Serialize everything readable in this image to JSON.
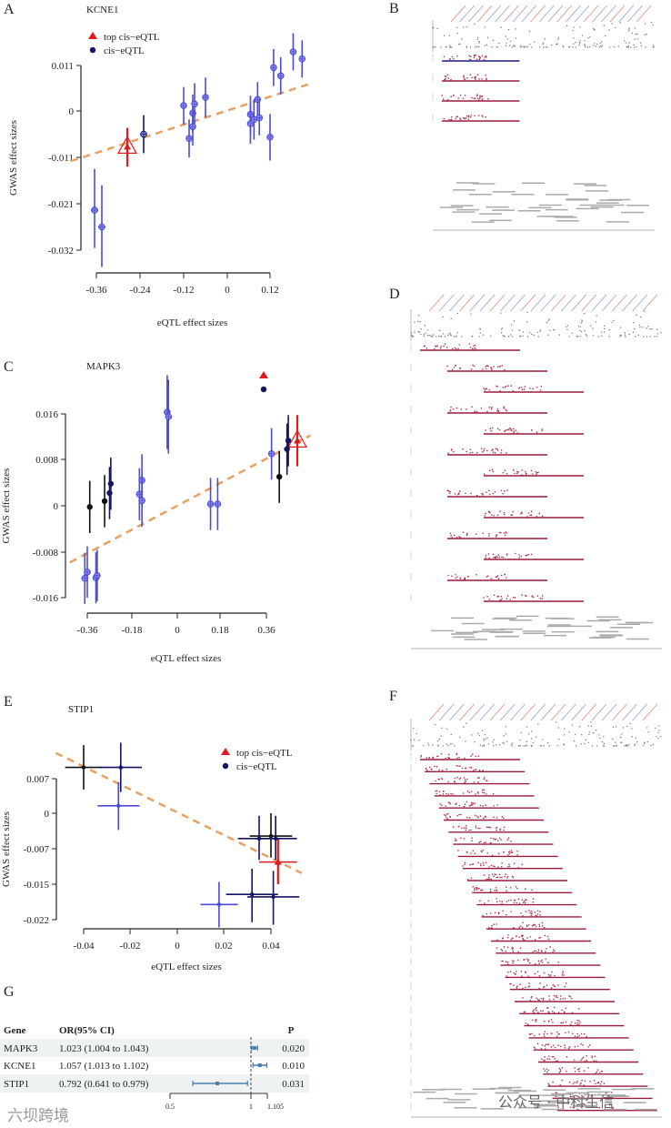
{
  "chart_data": [
    {
      "panel": "A",
      "type": "scatter",
      "title": "KCNE1",
      "xlabel": "eQTL effect sizes",
      "ylabel": "GWAS effect sizes",
      "xticks": [
        "-0.36",
        "-0.24",
        "-0.12",
        "0",
        "0.12"
      ],
      "xtick_values": [
        -0.36,
        -0.24,
        -0.12,
        0,
        0.12
      ],
      "yticks": [
        "0.011",
        "0",
        "-0.011",
        "-0.021",
        "-0.032"
      ],
      "ytick_values": [
        0.011,
        0,
        -0.011,
        -0.021,
        -0.032
      ],
      "legend": [
        "top cis−eQTL",
        "cis−eQTL"
      ],
      "legend_position": "top-left",
      "trend": [
        [
          -0.43,
          -0.0118
        ],
        [
          0.24,
          0.0068
        ]
      ],
      "points": [
        {
          "x": -0.275,
          "y": -0.0085,
          "yerr": 0.0045,
          "kind": "top"
        },
        {
          "x": -0.365,
          "y": -0.0225,
          "yerr": 0.009,
          "xerr": 0.01,
          "kind": "cis"
        },
        {
          "x": -0.345,
          "y": -0.0265,
          "yerr": 0.0095,
          "xerr": 0.01,
          "kind": "cis"
        },
        {
          "x": -0.23,
          "y": -0.0055,
          "yerr": 0.0045,
          "kind": "dark"
        },
        {
          "x": -0.12,
          "y": 0.0013,
          "yerr": 0.0045,
          "kind": "cis"
        },
        {
          "x": -0.105,
          "y": -0.0065,
          "yerr": 0.0045,
          "kind": "cis"
        },
        {
          "x": -0.095,
          "y": -0.0005,
          "yerr": 0.0045,
          "kind": "cis"
        },
        {
          "x": -0.09,
          "y": 0.0017,
          "yerr": 0.005,
          "kind": "cis"
        },
        {
          "x": -0.095,
          "y": -0.0037,
          "yerr": 0.0045,
          "kind": "cis"
        },
        {
          "x": -0.06,
          "y": 0.0033,
          "yerr": 0.0048,
          "kind": "cis"
        },
        {
          "x": 0.065,
          "y": -0.0008,
          "yerr": 0.0045,
          "kind": "cis"
        },
        {
          "x": 0.065,
          "y": -0.003,
          "yerr": 0.0048,
          "kind": "cis"
        },
        {
          "x": 0.075,
          "y": -0.002,
          "yerr": 0.0048,
          "kind": "cis"
        },
        {
          "x": 0.085,
          "y": 0.0028,
          "yerr": 0.0042,
          "kind": "cis"
        },
        {
          "x": 0.09,
          "y": -0.0016,
          "yerr": 0.0042,
          "kind": "cis"
        },
        {
          "x": 0.12,
          "y": -0.0062,
          "yerr": 0.0055,
          "kind": "cis"
        },
        {
          "x": 0.13,
          "y": 0.0105,
          "yerr": 0.0045,
          "kind": "cis"
        },
        {
          "x": 0.15,
          "y": 0.0085,
          "yerr": 0.0045,
          "kind": "cis"
        },
        {
          "x": 0.185,
          "y": 0.0143,
          "yerr": 0.0045,
          "kind": "cis"
        },
        {
          "x": 0.21,
          "y": 0.0126,
          "yerr": 0.0045,
          "kind": "cis"
        }
      ]
    },
    {
      "panel": "C",
      "type": "scatter",
      "title": "MAPK3",
      "xlabel": "eQTL effect sizes",
      "ylabel": "GWAS effect sizes",
      "xticks": [
        "-0.36",
        "-0.18",
        "0",
        "0.18",
        "0.36"
      ],
      "xtick_values": [
        -0.36,
        -0.18,
        0,
        0.18,
        0.36
      ],
      "yticks": [
        "0.016",
        "0.008",
        "0",
        "-0.008",
        "-0.016"
      ],
      "ytick_values": [
        0.016,
        0.008,
        0,
        -0.008,
        -0.016
      ],
      "legend": [],
      "legend_position": "top-right",
      "trend": [
        [
          -0.43,
          -0.0098
        ],
        [
          0.53,
          0.0122
        ]
      ],
      "points": [
        {
          "x": 0.48,
          "y": 0.0113,
          "yerr": 0.0045,
          "kind": "top"
        },
        {
          "x": -0.35,
          "y": -0.0002,
          "yerr": 0.0045,
          "kind": "black"
        },
        {
          "x": -0.29,
          "y": 0.0008,
          "yerr": 0.0045,
          "kind": "black"
        },
        {
          "x": -0.27,
          "y": 0.0022,
          "yerr": 0.0045,
          "kind": "dark"
        },
        {
          "x": -0.265,
          "y": 0.0038,
          "yerr": 0.0045,
          "kind": "dark"
        },
        {
          "x": -0.37,
          "y": -0.0126,
          "yerr": 0.0045,
          "kind": "cis"
        },
        {
          "x": -0.36,
          "y": -0.0115,
          "yerr": 0.0045,
          "kind": "cis"
        },
        {
          "x": -0.325,
          "y": -0.0125,
          "yerr": 0.0045,
          "kind": "cis"
        },
        {
          "x": -0.32,
          "y": -0.0121,
          "yerr": 0.0045,
          "kind": "cis"
        },
        {
          "x": -0.15,
          "y": 0.002,
          "yerr": 0.0045,
          "kind": "cis"
        },
        {
          "x": -0.14,
          "y": 0.0044,
          "yerr": 0.0045,
          "kind": "cis"
        },
        {
          "x": -0.14,
          "y": 0.0009,
          "yerr": 0.0045,
          "kind": "cis"
        },
        {
          "x": -0.04,
          "y": 0.0163,
          "yerr": 0.0065,
          "kind": "cis"
        },
        {
          "x": -0.035,
          "y": 0.0155,
          "yerr": 0.0065,
          "kind": "cis"
        },
        {
          "x": 0.14,
          "y": 0.0003,
          "yerr": 0.0045,
          "kind": "cis"
        },
        {
          "x": 0.17,
          "y": 0.0003,
          "yerr": 0.0045,
          "kind": "cis"
        },
        {
          "x": 0.38,
          "y": 0.009,
          "yerr": 0.0045,
          "kind": "cis"
        },
        {
          "x": 0.41,
          "y": 0.005,
          "yerr": 0.0045,
          "kind": "black"
        },
        {
          "x": 0.44,
          "y": 0.0098,
          "yerr": 0.0045,
          "kind": "dark"
        },
        {
          "x": 0.445,
          "y": 0.0113,
          "yerr": 0.0045,
          "kind": "dark"
        }
      ]
    },
    {
      "panel": "E",
      "type": "scatter",
      "title": "STIP1",
      "xlabel": "eQTL effect sizes",
      "ylabel": "GWAS effect sizes",
      "xticks": [
        "-0.04",
        "-0.02",
        "0",
        "0.02",
        "0.04"
      ],
      "xtick_values": [
        -0.04,
        -0.02,
        0,
        0.02,
        0.04
      ],
      "yticks": [
        "0.007",
        "0",
        "-0.007",
        "-0.015",
        "-0.022"
      ],
      "ytick_values": [
        0.007,
        0,
        -0.007,
        -0.015,
        -0.022
      ],
      "legend": [
        "top cis−eQTL",
        "cis−eQTL"
      ],
      "legend_position": "top-right",
      "trend": [
        [
          -0.052,
          0.0122
        ],
        [
          0.053,
          -0.0125
        ]
      ],
      "points": [
        {
          "x": 0.043,
          "y": -0.01,
          "yerr": 0.005,
          "xerr": 0.008,
          "kind": "top"
        },
        {
          "x": -0.04,
          "y": 0.0093,
          "yerr": 0.0045,
          "xerr": 0.008,
          "kind": "black"
        },
        {
          "x": -0.024,
          "y": 0.0093,
          "yerr": 0.005,
          "xerr": 0.009,
          "kind": "dark"
        },
        {
          "x": -0.025,
          "y": 0.0015,
          "yerr": 0.0048,
          "xerr": 0.009,
          "kind": "cis"
        },
        {
          "x": 0.04,
          "y": -0.0045,
          "yerr": 0.0045,
          "xerr": 0.009,
          "kind": "black"
        },
        {
          "x": 0.035,
          "y": -0.005,
          "yerr": 0.0045,
          "xerr": 0.009,
          "kind": "dark"
        },
        {
          "x": 0.042,
          "y": -0.005,
          "yerr": 0.0045,
          "xerr": 0.009,
          "kind": "dark"
        },
        {
          "x": 0.018,
          "y": -0.019,
          "yerr": 0.0045,
          "xerr": 0.008,
          "kind": "cis"
        },
        {
          "x": 0.032,
          "y": -0.017,
          "yerr": 0.0055,
          "xerr": 0.011,
          "kind": "dark"
        },
        {
          "x": 0.041,
          "y": -0.0175,
          "yerr": 0.0055,
          "xerr": 0.011,
          "kind": "dark"
        }
      ]
    },
    {
      "panel": "G",
      "type": "table",
      "title": "",
      "headers": [
        "Gene",
        "OR(95% CI)",
        "P"
      ],
      "rows": [
        {
          "gene": "MAPK3",
          "ci_text": "1.023 (1.004 to 1.043)",
          "or": 1.023,
          "lo": 1.004,
          "hi": 1.043,
          "p": "0.020"
        },
        {
          "gene": "KCNE1",
          "ci_text": "1.057 (1.013 to 1.102)",
          "or": 1.057,
          "lo": 1.013,
          "hi": 1.102,
          "p": "0.010"
        },
        {
          "gene": "STIP1",
          "ci_text": "0.792 (0.641 to 0.979)",
          "or": 0.792,
          "lo": 0.641,
          "hi": 0.979,
          "p": "0.031"
        }
      ],
      "xticks": [
        "0.5",
        "1",
        "1.105"
      ],
      "xtick_values": [
        0.5,
        1,
        1.105
      ],
      "reference": 1
    }
  ],
  "panel_labels": {
    "A": "A",
    "B": "B",
    "C": "C",
    "D": "D",
    "E": "E",
    "F": "F",
    "G": "G"
  },
  "watermarks": {
    "left": "六坝跨境",
    "right": "公众号 · 中科生信"
  },
  "colors": {
    "top": "#e31a1c",
    "cis": "#4b4bd6",
    "dark": "#141464",
    "black": "#111111",
    "trend": "#e8a060",
    "forest": "#4a7fb0",
    "row_bg": "#eef2f2"
  }
}
